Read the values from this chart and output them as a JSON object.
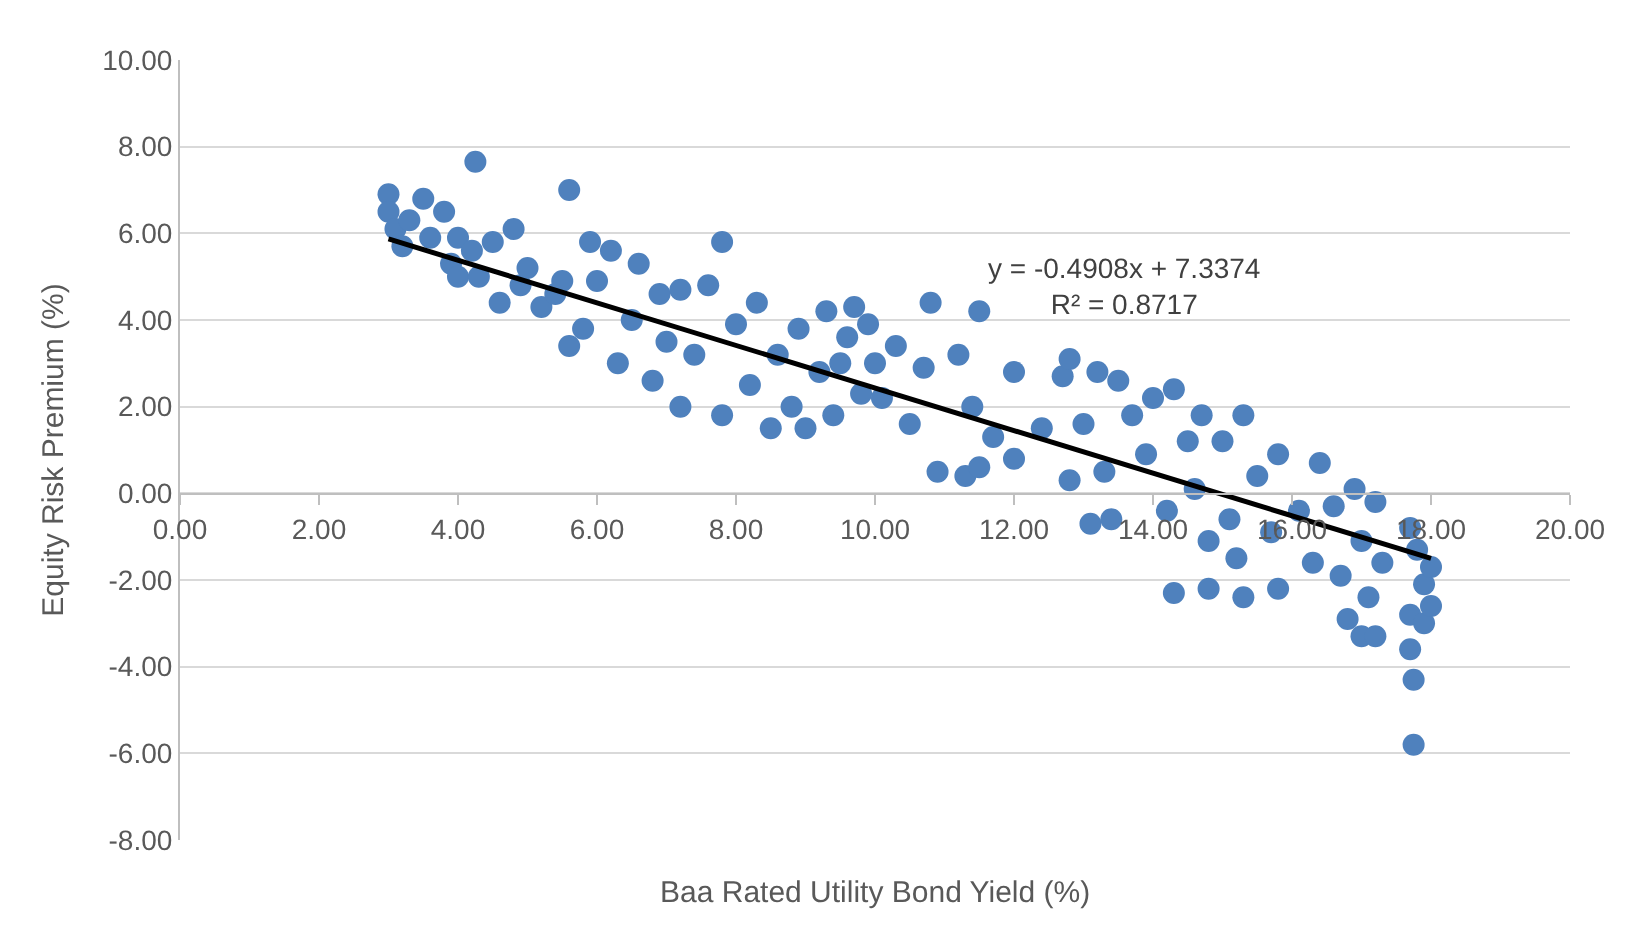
{
  "chart_data": {
    "type": "scatter",
    "xlabel": "Baa Rated Utility Bond Yield (%)",
    "ylabel": "Equity Risk Premium (%)",
    "xlim": [
      0,
      20
    ],
    "xticks": [
      {
        "value": 0,
        "label": "0.00"
      },
      {
        "value": 2,
        "label": "2.00"
      },
      {
        "value": 4,
        "label": "4.00"
      },
      {
        "value": 6,
        "label": "6.00"
      },
      {
        "value": 8,
        "label": "8.00"
      },
      {
        "value": 10,
        "label": "10.00"
      },
      {
        "value": 12,
        "label": "12.00"
      },
      {
        "value": 14,
        "label": "14.00"
      },
      {
        "value": 16,
        "label": "16.00"
      },
      {
        "value": 18,
        "label": "18.00"
      },
      {
        "value": 20,
        "label": "20.00"
      }
    ],
    "ylim": [
      -8,
      10
    ],
    "yticks": [
      {
        "value": -8,
        "label": "-8.00"
      },
      {
        "value": -6,
        "label": "-6.00"
      },
      {
        "value": -4,
        "label": "-4.00"
      },
      {
        "value": -2,
        "label": "-2.00"
      },
      {
        "value": 0,
        "label": "0.00"
      },
      {
        "value": 2,
        "label": "2.00"
      },
      {
        "value": 4,
        "label": "4.00"
      },
      {
        "value": 6,
        "label": "6.00"
      },
      {
        "value": 8,
        "label": "8.00"
      },
      {
        "value": 10,
        "label": "10.00"
      }
    ],
    "grid": "y",
    "marker": "circle",
    "annotations": [
      "y = -0.4908x + 7.3374",
      "R² = 0.8717"
    ],
    "series": [
      {
        "color": "#4f81bd",
        "x": [
          3.0,
          3.0,
          3.1,
          3.2,
          3.3,
          3.5,
          3.6,
          3.8,
          3.9,
          4.0,
          4.0,
          4.25,
          4.2,
          4.3,
          4.5,
          4.6,
          4.8,
          4.9,
          5.0,
          5.2,
          5.4,
          5.5,
          5.6,
          5.6,
          5.8,
          5.9,
          6.0,
          6.2,
          6.3,
          6.5,
          6.6,
          6.8,
          6.9,
          7.0,
          7.2,
          7.2,
          7.4,
          7.6,
          7.8,
          7.8,
          8.0,
          8.2,
          8.3,
          8.5,
          8.6,
          8.8,
          8.9,
          9.0,
          9.2,
          9.3,
          9.4,
          9.5,
          9.6,
          9.7,
          9.8,
          9.9,
          10.0,
          10.1,
          10.3,
          10.5,
          10.7,
          10.8,
          10.9,
          11.2,
          11.3,
          11.4,
          11.5,
          11.5,
          11.7,
          12.0,
          12.0,
          12.4,
          12.7,
          12.8,
          12.8,
          13.0,
          13.1,
          13.2,
          13.3,
          13.4,
          13.5,
          13.7,
          13.9,
          14.0,
          14.2,
          14.3,
          14.3,
          14.5,
          14.6,
          14.7,
          14.8,
          14.8,
          15.0,
          15.1,
          15.2,
          15.3,
          15.3,
          15.5,
          15.7,
          15.8,
          15.8,
          16.1,
          16.3,
          16.4,
          16.6,
          16.7,
          16.8,
          16.9,
          17.0,
          17.0,
          17.1,
          17.2,
          17.2,
          17.3,
          17.7,
          17.7,
          17.7,
          17.75,
          17.75,
          17.8,
          17.9,
          17.9,
          18.0,
          18.0
        ],
        "values": [
          6.9,
          6.5,
          6.1,
          5.7,
          6.3,
          6.8,
          5.9,
          6.5,
          5.3,
          5.9,
          5.0,
          7.65,
          5.6,
          5.0,
          5.8,
          4.4,
          6.1,
          4.8,
          5.2,
          4.3,
          4.6,
          4.9,
          7.0,
          3.4,
          3.8,
          5.8,
          4.9,
          5.6,
          3.0,
          4.0,
          5.3,
          2.6,
          4.6,
          3.5,
          2.0,
          4.7,
          3.2,
          4.8,
          5.8,
          1.8,
          3.9,
          2.5,
          4.4,
          1.5,
          3.2,
          2.0,
          3.8,
          1.5,
          2.8,
          4.2,
          1.8,
          3.0,
          3.6,
          4.3,
          2.3,
          3.9,
          3.0,
          2.2,
          3.4,
          1.6,
          2.9,
          4.4,
          0.5,
          3.2,
          0.4,
          2.0,
          4.2,
          0.6,
          1.3,
          2.8,
          0.8,
          1.5,
          2.7,
          3.1,
          0.3,
          1.6,
          -0.7,
          2.8,
          0.5,
          -0.6,
          2.6,
          1.8,
          0.9,
          2.2,
          -0.4,
          2.4,
          -2.3,
          1.2,
          0.1,
          1.8,
          -1.1,
          -2.2,
          1.2,
          -0.6,
          -1.5,
          1.8,
          -2.4,
          0.4,
          -0.9,
          0.9,
          -2.2,
          -0.4,
          -1.6,
          0.7,
          -0.3,
          -1.9,
          -2.9,
          0.1,
          -1.1,
          -3.3,
          -2.4,
          -0.2,
          -3.3,
          -1.6,
          -0.8,
          -2.8,
          -3.6,
          -4.3,
          -5.8,
          -1.3,
          -2.1,
          -3.0,
          -1.7,
          -2.6
        ]
      },
      {
        "type": "line",
        "marker": "none",
        "color": "#000000",
        "line_style": "solid",
        "x": [
          3.0,
          18.0
        ],
        "values": [
          5.87,
          -1.5
        ]
      }
    ]
  }
}
